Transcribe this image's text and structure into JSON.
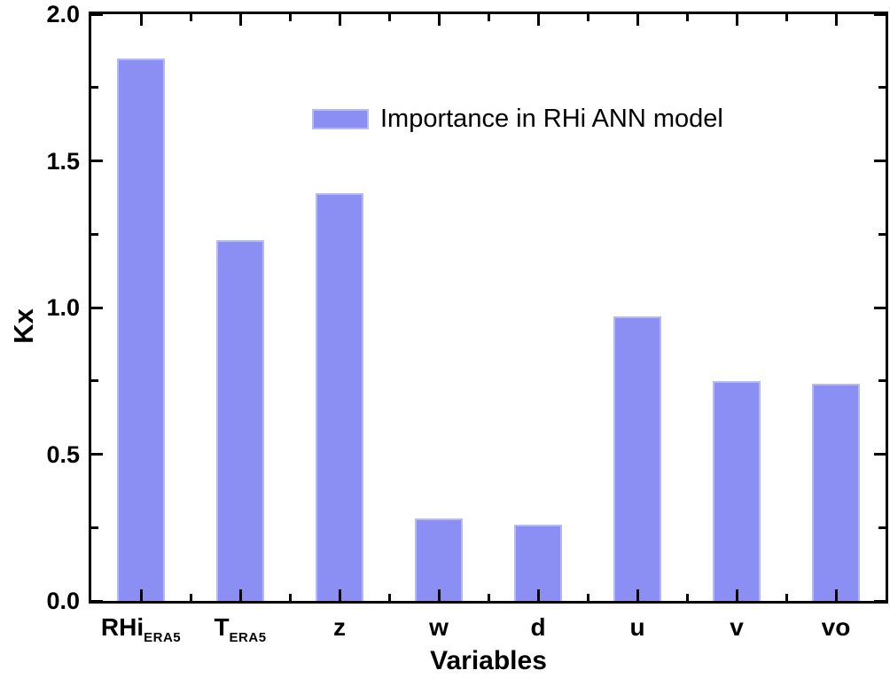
{
  "figure": {
    "background": "#ffffff",
    "axis_color": "#000000",
    "text_color": "#000000",
    "bar_fill": "#8b8ff3",
    "bar_edge": "#b6b9f8"
  },
  "chart_data": {
    "type": "bar",
    "title": "",
    "xlabel": "Variables",
    "ylabel": "Kx",
    "legend": {
      "label": "Importance in RHi ANN model",
      "position": "upper-center-inside"
    },
    "categories": [
      {
        "text": "RHi",
        "sub": "ERA5"
      },
      {
        "text": "T",
        "sub": "ERA5"
      },
      {
        "text": "z",
        "sub": ""
      },
      {
        "text": "w",
        "sub": ""
      },
      {
        "text": "d",
        "sub": ""
      },
      {
        "text": "u",
        "sub": ""
      },
      {
        "text": "v",
        "sub": ""
      },
      {
        "text": "vo",
        "sub": ""
      }
    ],
    "values": [
      1.85,
      1.23,
      1.39,
      0.28,
      0.26,
      0.97,
      0.75,
      0.74
    ],
    "ylim": [
      0.0,
      2.0
    ],
    "y_major_ticks": [
      0.0,
      0.5,
      1.0,
      1.5,
      2.0
    ],
    "y_tick_labels": [
      "0.0",
      "0.5",
      "1.0",
      "1.5",
      "2.0"
    ],
    "y_minor_step": 0.25,
    "grid": false,
    "frame": "box",
    "ticks_direction": "in"
  }
}
